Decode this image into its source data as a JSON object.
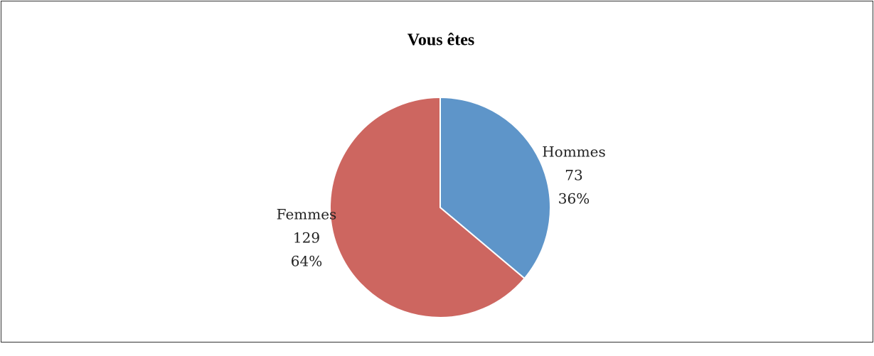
{
  "chart_data": {
    "type": "pie",
    "title": "Vous êtes",
    "categories": [
      "Hommes",
      "Femmes"
    ],
    "values": [
      73,
      129
    ],
    "percent_labels": [
      "36%",
      "64%"
    ],
    "colors": [
      "#5e95c9",
      "#cd6660"
    ]
  }
}
